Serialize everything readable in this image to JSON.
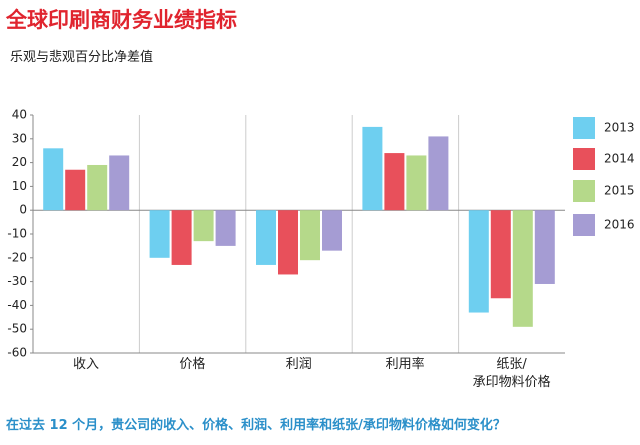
{
  "chart_data": {
    "type": "bar",
    "title": "全球印刷商财务业绩指标",
    "subtitle": "乐观与悲观百分比净差值",
    "footnote": "在过去 12 个月，贵公司的收入、价格、利润、利用率和纸张/承印物料价格如何变化？",
    "categories": [
      "收入",
      "价格",
      "利润",
      "利用率",
      "纸张/\n承印物料价格"
    ],
    "series": [
      {
        "name": "2013",
        "color": "#6ecff0",
        "values": [
          26,
          -20,
          -23,
          35,
          -43
        ]
      },
      {
        "name": "2014",
        "color": "#e8505b",
        "values": [
          17,
          -23,
          -27,
          24,
          -37
        ]
      },
      {
        "name": "2015",
        "color": "#b5d98a",
        "values": [
          19,
          -13,
          -21,
          23,
          -49
        ]
      },
      {
        "name": "2016",
        "color": "#a59cd3",
        "values": [
          23,
          -15,
          -17,
          31,
          -31
        ]
      }
    ],
    "ylim": [
      -60,
      40
    ],
    "yticks": [
      40,
      30,
      20,
      10,
      0,
      -10,
      -20,
      -30,
      -40,
      -50,
      -60
    ],
    "grid": false,
    "legend": "right"
  }
}
